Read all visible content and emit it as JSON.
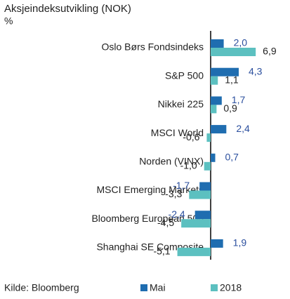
{
  "chart_data": {
    "type": "bar",
    "orientation": "horizontal",
    "title": "Aksjeindeksutvikling (NOK)",
    "subtitle": "%",
    "source": "Kilde: Bloomberg",
    "categories": [
      "Oslo Børs Fondsindeks",
      "S&P 500",
      "Nikkei 225",
      "MSCI World",
      "Norden (VINX)",
      "MSCI Emerging Markets",
      "Bloomberg European 500",
      "Shanghai SE Composite"
    ],
    "series": [
      {
        "name": "Mai",
        "color": "#1f6db0",
        "label_color": "#2b4f9e",
        "values": [
          2.0,
          4.3,
          1.7,
          2.4,
          0.7,
          -1.7,
          -2.4,
          1.9
        ],
        "value_labels": [
          "2,0",
          "4,3",
          "1,7",
          "2,4",
          "0,7",
          "-1,7",
          "-2,4",
          "1,9"
        ]
      },
      {
        "name": "2018",
        "color": "#5cc0c0",
        "label_color": "#222222",
        "values": [
          6.9,
          1.1,
          0.9,
          -0.6,
          -1.0,
          -3.3,
          -4.5,
          -5.1
        ],
        "value_labels": [
          "6,9",
          "1,1",
          "0,9",
          "-0,6",
          "-1,0",
          "-3,3",
          "-4,5",
          "-5,1"
        ]
      }
    ]
  }
}
